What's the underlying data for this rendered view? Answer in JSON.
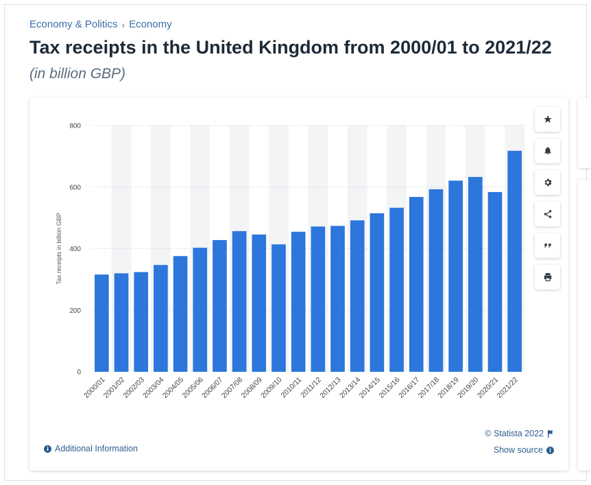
{
  "breadcrumb": {
    "items": [
      "Economy & Politics",
      "Economy"
    ],
    "separator": "›"
  },
  "header": {
    "title": "Tax receipts in the United Kingdom from 2000/01 to 2021/22",
    "subtitle": "(in billion GBP)"
  },
  "colors": {
    "bar": "#2c76dc",
    "band": "#f3f4f6",
    "grid": "#c9ced4",
    "link": "#2f5d8f"
  },
  "toolbar": {
    "buttons": [
      {
        "name": "favorite",
        "icon": "star-icon"
      },
      {
        "name": "notify",
        "icon": "bell-icon"
      },
      {
        "name": "settings",
        "icon": "gear-icon"
      },
      {
        "name": "share",
        "icon": "share-icon"
      },
      {
        "name": "cite",
        "icon": "quote-icon"
      },
      {
        "name": "print",
        "icon": "print-icon"
      }
    ]
  },
  "footer": {
    "additional_info": "Additional Information",
    "credit": "© Statista 2022",
    "show_source": "Show source"
  },
  "chart_data": {
    "type": "bar",
    "title": "Tax receipts in the United Kingdom from 2000/01 to 2021/22",
    "subtitle": "(in billion GBP)",
    "xlabel": "",
    "ylabel": "Tax receipts in billion GBP",
    "ylim": [
      0,
      800
    ],
    "yticks": [
      0,
      200,
      400,
      600,
      800
    ],
    "grid": true,
    "categories": [
      "2000/01",
      "2001/02",
      "2002/03",
      "2003/04",
      "2004/05",
      "2005/06",
      "2006/07",
      "2007/08",
      "2008/09",
      "2009/10",
      "2010/11",
      "2011/12",
      "2012/13",
      "2013/14",
      "2014/15",
      "2015/16",
      "2016/17",
      "2017/18",
      "2018/19",
      "2019/20",
      "2020/21",
      "2021/22"
    ],
    "values": [
      316,
      320,
      324,
      347,
      376,
      403,
      428,
      457,
      446,
      414,
      455,
      472,
      474,
      492,
      515,
      533,
      568,
      593,
      621,
      633,
      584,
      718
    ]
  }
}
